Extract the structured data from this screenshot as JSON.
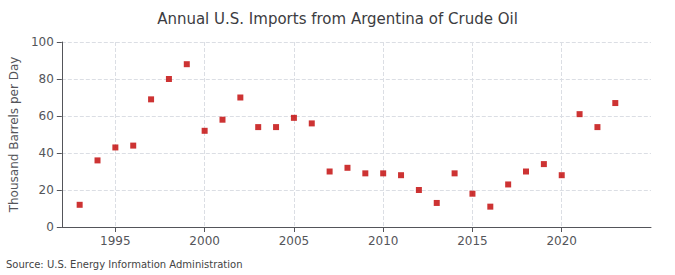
{
  "chart_data": {
    "type": "scatter",
    "title": "Annual U.S. Imports from Argentina of Crude Oil",
    "ylabel": "Thousand Barrels per Day",
    "annotation": "Source: U.S. Energy Information Administration",
    "x": [
      1993,
      1994,
      1995,
      1996,
      1997,
      1998,
      1999,
      2000,
      2001,
      2002,
      2003,
      2004,
      2005,
      2006,
      2007,
      2008,
      2009,
      2010,
      2011,
      2012,
      2013,
      2014,
      2015,
      2016,
      2017,
      2018,
      2019,
      2020,
      2021,
      2022,
      2023
    ],
    "values": [
      12,
      36,
      43,
      44,
      69,
      80,
      88,
      52,
      58,
      70,
      54,
      54,
      59,
      56,
      30,
      32,
      29,
      29,
      28,
      20,
      13,
      29,
      18,
      11,
      23,
      30,
      34,
      28,
      61,
      54,
      67
    ],
    "color": "#c00000",
    "marker": "square",
    "xlim": [
      1992,
      2025
    ],
    "xticks": [
      1995,
      2000,
      2005,
      2010,
      2015,
      2020
    ],
    "ylim": [
      0,
      100
    ],
    "yticks": [
      0,
      20,
      40,
      60,
      80,
      100
    ],
    "grid": true
  }
}
